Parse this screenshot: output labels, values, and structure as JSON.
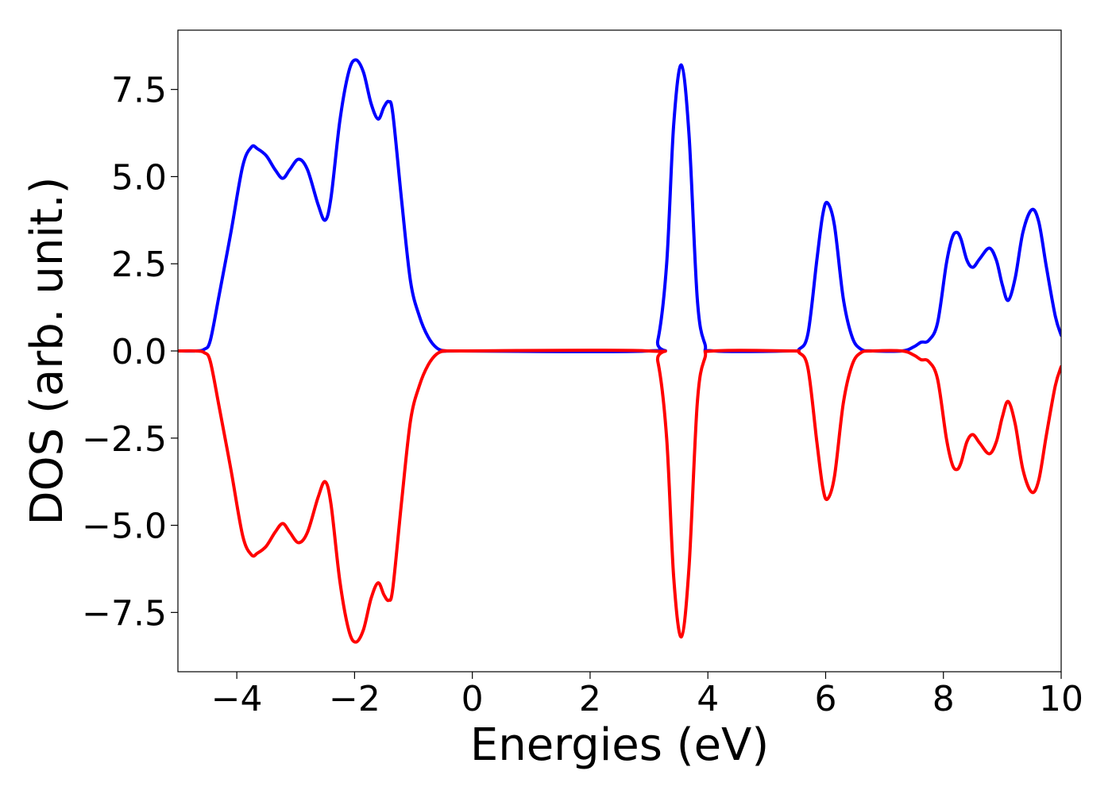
{
  "chart_data": {
    "type": "line",
    "title": "",
    "xlabel": "Energies (eV)",
    "ylabel": "DOS (arb. unit.)",
    "xlim": [
      -5,
      10
    ],
    "ylim": [
      -9.2,
      9.2
    ],
    "grid": false,
    "legend": "none",
    "xticks": [
      -4,
      -2,
      0,
      2,
      4,
      6,
      8,
      10
    ],
    "xtick_labels": [
      "−4",
      "−2",
      "0",
      "2",
      "4",
      "6",
      "8",
      "10"
    ],
    "yticks": [
      7.5,
      5.0,
      2.5,
      0.0,
      -2.5,
      -5.0,
      -7.5
    ],
    "ytick_labels": [
      "7.5",
      "5.0",
      "2.5",
      "0.0",
      "−2.5",
      "−5.0",
      "−7.5"
    ],
    "series": [
      {
        "color": "#0000ff",
        "x": [
          -5.0,
          -4.7,
          -4.55,
          -4.45,
          -4.3,
          -4.1,
          -3.9,
          -3.75,
          -3.65,
          -3.5,
          -3.35,
          -3.22,
          -3.1,
          -2.95,
          -2.8,
          -2.62,
          -2.5,
          -2.4,
          -2.25,
          -2.1,
          -1.98,
          -1.85,
          -1.72,
          -1.6,
          -1.5,
          -1.42,
          -1.35,
          -1.2,
          -1.05,
          -0.9,
          -0.75,
          -0.6,
          -0.45,
          -0.2,
          3.0,
          3.15,
          3.3,
          3.42,
          3.55,
          3.68,
          3.82,
          3.95,
          4.1,
          5.4,
          5.55,
          5.7,
          5.85,
          5.95,
          6.03,
          6.15,
          6.3,
          6.45,
          6.6,
          6.8,
          7.3,
          7.5,
          7.62,
          7.75,
          7.9,
          8.05,
          8.15,
          8.23,
          8.3,
          8.4,
          8.5,
          8.62,
          8.78,
          8.9,
          9.0,
          9.1,
          9.22,
          9.35,
          9.5,
          9.62,
          9.75,
          9.9,
          10.0
        ],
        "y": [
          0.0,
          0.0,
          0.05,
          0.3,
          1.6,
          3.4,
          5.3,
          5.85,
          5.8,
          5.6,
          5.2,
          4.95,
          5.2,
          5.5,
          5.2,
          4.2,
          3.75,
          4.4,
          6.6,
          8.0,
          8.35,
          8.0,
          7.1,
          6.65,
          7.0,
          7.15,
          6.8,
          4.3,
          2.0,
          1.0,
          0.4,
          0.08,
          0.0,
          0.0,
          0.0,
          0.3,
          2.5,
          6.5,
          8.2,
          6.2,
          1.5,
          0.2,
          0.0,
          0.0,
          0.05,
          0.5,
          2.6,
          3.9,
          4.25,
          3.6,
          1.5,
          0.4,
          0.05,
          0.0,
          0.0,
          0.12,
          0.25,
          0.3,
          0.8,
          2.5,
          3.25,
          3.4,
          3.2,
          2.6,
          2.4,
          2.65,
          2.95,
          2.6,
          1.9,
          1.45,
          2.1,
          3.4,
          4.05,
          3.7,
          2.4,
          1.0,
          0.45
        ]
      },
      {
        "color": "#ff0000",
        "x": [
          -5.0,
          -4.7,
          -4.55,
          -4.45,
          -4.3,
          -4.1,
          -3.9,
          -3.75,
          -3.65,
          -3.5,
          -3.35,
          -3.22,
          -3.1,
          -2.95,
          -2.8,
          -2.62,
          -2.5,
          -2.4,
          -2.25,
          -2.1,
          -1.98,
          -1.85,
          -1.72,
          -1.6,
          -1.5,
          -1.42,
          -1.35,
          -1.2,
          -1.05,
          -0.9,
          -0.75,
          -0.6,
          -0.45,
          -0.2,
          3.0,
          3.15,
          3.3,
          3.42,
          3.55,
          3.68,
          3.82,
          3.95,
          4.1,
          5.4,
          5.55,
          5.7,
          5.85,
          5.95,
          6.03,
          6.15,
          6.3,
          6.45,
          6.6,
          6.8,
          7.3,
          7.5,
          7.62,
          7.75,
          7.9,
          8.05,
          8.15,
          8.23,
          8.3,
          8.4,
          8.5,
          8.62,
          8.78,
          8.9,
          9.0,
          9.1,
          9.22,
          9.35,
          9.5,
          9.62,
          9.75,
          9.9,
          10.0
        ],
        "y": [
          0.0,
          0.0,
          -0.05,
          -0.3,
          -1.6,
          -3.4,
          -5.3,
          -5.85,
          -5.8,
          -5.6,
          -5.2,
          -4.95,
          -5.2,
          -5.5,
          -5.2,
          -4.2,
          -3.75,
          -4.4,
          -6.6,
          -8.0,
          -8.35,
          -8.0,
          -7.1,
          -6.65,
          -7.0,
          -7.15,
          -6.8,
          -4.3,
          -2.0,
          -1.0,
          -0.4,
          -0.08,
          0.0,
          0.0,
          0.0,
          -0.3,
          -2.5,
          -6.5,
          -8.2,
          -6.2,
          -1.5,
          -0.2,
          0.0,
          0.0,
          -0.05,
          -0.5,
          -2.6,
          -3.9,
          -4.25,
          -3.6,
          -1.5,
          -0.4,
          -0.05,
          0.0,
          0.0,
          -0.12,
          -0.25,
          -0.3,
          -0.8,
          -2.5,
          -3.25,
          -3.4,
          -3.2,
          -2.6,
          -2.4,
          -2.65,
          -2.95,
          -2.6,
          -1.9,
          -1.45,
          -2.1,
          -3.4,
          -4.05,
          -3.7,
          -2.4,
          -1.0,
          -0.45
        ]
      }
    ]
  }
}
